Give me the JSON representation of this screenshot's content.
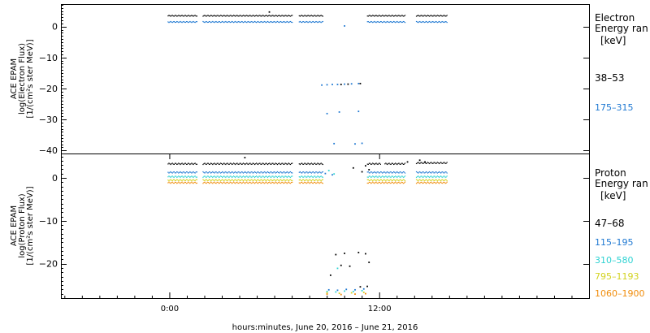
{
  "chart_data": [
    {
      "type": "scatter",
      "panel": "electron",
      "ylabel_lines": [
        "ACE EPAM",
        "log(Electron Flux)",
        "[1/(cm²s ster MeV)]"
      ],
      "legend_title_lines": [
        "Electron",
        "Energy ran"
      ],
      "legend_unit": "[keV]",
      "ylim": [
        -41,
        7
      ],
      "yticks": [
        0,
        -10,
        -20,
        -30,
        -40
      ],
      "yticklabels": [
        "0",
        "−10",
        "−20",
        "−30",
        "−40"
      ],
      "series": [
        {
          "name": "38–53",
          "color": "#000000",
          "segments": [
            {
              "x": [
                -0.1,
                1.6
              ],
              "y": 3.5
            },
            {
              "x": [
                1.9,
                7.0
              ],
              "y": 3.5
            },
            {
              "x": [
                7.4,
                8.8
              ],
              "y": 3.5
            },
            {
              "x": [
                11.3,
                13.5
              ],
              "y": 3.5
            },
            {
              "x": [
                14.1,
                15.9
              ],
              "y": 3.5
            }
          ],
          "extra_points": [
            [
              5.7,
              4.8
            ],
            [
              9.8,
              -18.6
            ],
            [
              10.2,
              -18.5
            ],
            [
              10.9,
              -18.3
            ]
          ]
        },
        {
          "name": "175–315",
          "color": "#1e78d2",
          "segments": [
            {
              "x": [
                -0.1,
                1.6
              ],
              "y": 1.5
            },
            {
              "x": [
                1.9,
                7.0
              ],
              "y": 1.5
            },
            {
              "x": [
                7.4,
                8.8
              ],
              "y": 1.5
            },
            {
              "x": [
                11.3,
                13.5
              ],
              "y": 1.5
            },
            {
              "x": [
                14.1,
                15.9
              ],
              "y": 1.5
            }
          ],
          "extra_points": [
            [
              8.7,
              -18.8
            ],
            [
              9.0,
              -18.7
            ],
            [
              9.3,
              -18.6
            ],
            [
              9.6,
              -18.6
            ],
            [
              10.0,
              -18.5
            ],
            [
              10.4,
              -18.4
            ],
            [
              10.8,
              -18.3
            ],
            [
              9.0,
              -28.0
            ],
            [
              9.7,
              -27.5
            ],
            [
              10.8,
              -27.3
            ],
            [
              9.4,
              -37.7
            ],
            [
              10.6,
              -37.8
            ],
            [
              11.0,
              -37.6
            ],
            [
              10.0,
              0.3
            ]
          ]
        }
      ]
    },
    {
      "type": "scatter",
      "panel": "proton",
      "ylabel_lines": [
        "ACE EPAM",
        "log(Proton Flux)",
        "[1/(cm²s ster MeV)]"
      ],
      "legend_title_lines": [
        "Proton",
        "Energy ran"
      ],
      "legend_unit": "[keV]",
      "ylim": [
        -28,
        5.5
      ],
      "yticks": [
        0,
        -10,
        -20
      ],
      "yticklabels": [
        "0",
        "−10",
        "−20"
      ],
      "series": [
        {
          "name": "47–68",
          "color": "#000000",
          "segments": [
            {
              "x": [
                -0.1,
                1.6
              ],
              "y": 3.3
            },
            {
              "x": [
                1.9,
                7.0
              ],
              "y": 3.3
            },
            {
              "x": [
                7.4,
                8.8
              ],
              "y": 3.3
            },
            {
              "x": [
                11.3,
                12.1
              ],
              "y": 3.3
            },
            {
              "x": [
                12.3,
                13.5
              ],
              "y": 3.3
            },
            {
              "x": [
                14.1,
                15.9
              ],
              "y": 3.5
            }
          ],
          "extra_points": [
            [
              4.3,
              4.8
            ],
            [
              10.5,
              2.4
            ],
            [
              11.0,
              1.5
            ],
            [
              11.4,
              2.0
            ],
            [
              11.2,
              2.9
            ],
            [
              13.6,
              3.8
            ],
            [
              14.3,
              4.2
            ],
            [
              14.6,
              3.8
            ],
            [
              9.5,
              -17.8
            ],
            [
              10.0,
              -17.5
            ],
            [
              10.8,
              -17.3
            ],
            [
              11.2,
              -17.6
            ],
            [
              11.4,
              -19.6
            ],
            [
              9.8,
              -20.3
            ],
            [
              10.3,
              -20.5
            ],
            [
              9.2,
              -22.6
            ],
            [
              10.9,
              -25.3
            ],
            [
              11.3,
              -25.2
            ]
          ]
        },
        {
          "name": "115–195",
          "color": "#1e78d2",
          "segments": [
            {
              "x": [
                -0.1,
                1.6
              ],
              "y": 1.3
            },
            {
              "x": [
                1.9,
                7.0
              ],
              "y": 1.3
            },
            {
              "x": [
                7.4,
                8.8
              ],
              "y": 1.3
            },
            {
              "x": [
                11.3,
                13.5
              ],
              "y": 1.3
            },
            {
              "x": [
                14.1,
                15.9
              ],
              "y": 1.3
            }
          ],
          "extra_points": [
            [
              8.9,
              1.1
            ],
            [
              9.3,
              0.8
            ],
            [
              9.1,
              -26.0
            ],
            [
              9.6,
              -26.1
            ],
            [
              10.1,
              -25.9
            ],
            [
              10.6,
              -26.0
            ],
            [
              11.1,
              -25.8
            ]
          ]
        },
        {
          "name": "310–580",
          "color": "#2ed2d2",
          "segments": [
            {
              "x": [
                -0.1,
                1.6
              ],
              "y": 0.3
            },
            {
              "x": [
                1.9,
                7.0
              ],
              "y": 0.3
            },
            {
              "x": [
                7.4,
                8.8
              ],
              "y": 0.3
            },
            {
              "x": [
                11.3,
                13.5
              ],
              "y": 0.3
            },
            {
              "x": [
                14.1,
                15.9
              ],
              "y": 0.3
            }
          ],
          "extra_points": [
            [
              9.1,
              1.8
            ],
            [
              9.4,
              1.0
            ],
            [
              9.6,
              -21.0
            ],
            [
              9.0,
              -26.4
            ],
            [
              9.5,
              -26.5
            ],
            [
              10.0,
              -26.3
            ],
            [
              10.5,
              -26.4
            ],
            [
              11.0,
              -26.2
            ]
          ]
        },
        {
          "name": "795–1193",
          "color": "#d2d21e",
          "segments": [
            {
              "x": [
                -0.1,
                1.6
              ],
              "y": -0.5
            },
            {
              "x": [
                1.9,
                7.0
              ],
              "y": -0.5
            },
            {
              "x": [
                7.4,
                8.8
              ],
              "y": -0.5
            },
            {
              "x": [
                11.3,
                13.5
              ],
              "y": -0.5
            },
            {
              "x": [
                14.1,
                15.9
              ],
              "y": -0.5
            }
          ],
          "extra_points": [
            [
              9.0,
              -26.7
            ],
            [
              9.7,
              -26.8
            ],
            [
              10.4,
              -26.7
            ],
            [
              11.1,
              -26.6
            ]
          ]
        },
        {
          "name": "1060–1900",
          "color": "#f08c0a",
          "segments": [
            {
              "x": [
                -0.1,
                1.6
              ],
              "y": -1.1
            },
            {
              "x": [
                1.9,
                7.0
              ],
              "y": -1.1
            },
            {
              "x": [
                7.4,
                8.8
              ],
              "y": -1.1
            },
            {
              "x": [
                11.3,
                13.5
              ],
              "y": -1.1
            },
            {
              "x": [
                14.1,
                15.9
              ],
              "y": -1.1
            }
          ],
          "extra_points": [
            [
              9.0,
              -27.0
            ],
            [
              9.8,
              -27.1
            ],
            [
              10.6,
              -27.0
            ],
            [
              11.2,
              -26.9
            ]
          ]
        }
      ]
    }
  ],
  "x_axis": {
    "range": [
      -6.2,
      24.0
    ],
    "unit": "hours from 00:00 June 20, 2016",
    "ticks": [
      0,
      12
    ],
    "ticklabels": [
      "0:00",
      "12:00"
    ],
    "label": "hours:minutes, June 20, 2016 – June 21, 2016"
  }
}
